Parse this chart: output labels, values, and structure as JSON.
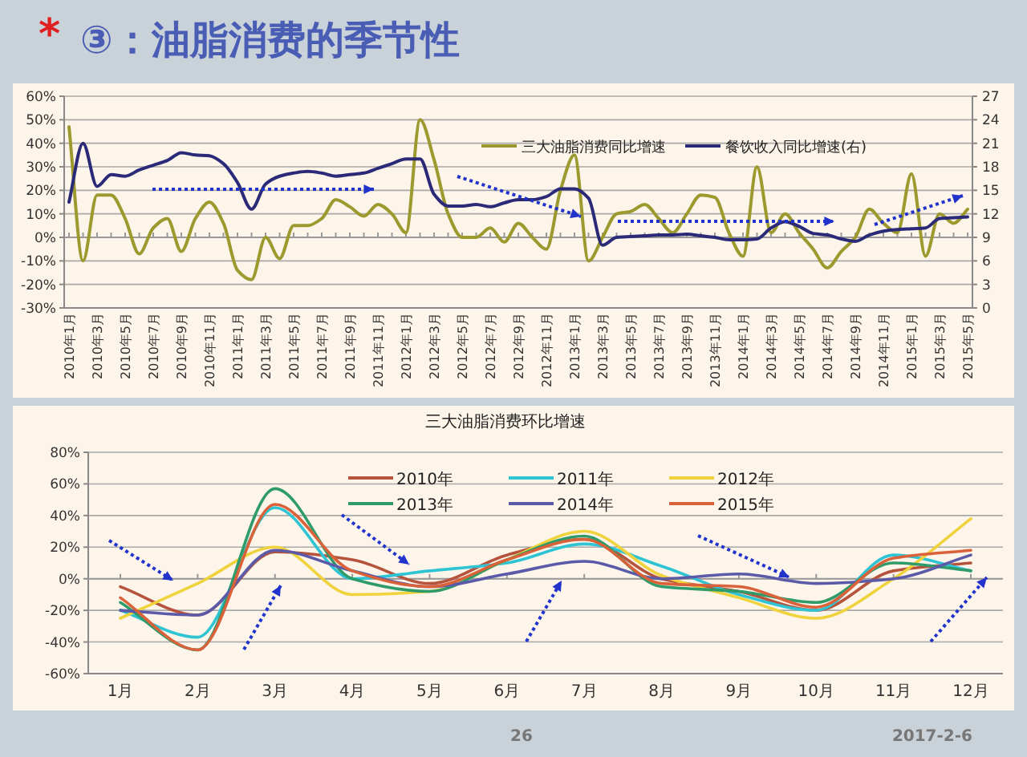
{
  "chart_data": [
    {
      "type": "line",
      "title": "③：油脂消费的季节性",
      "annotations": [
        "*"
      ],
      "categories": [
        "2010年1月",
        null,
        "2010年3月",
        null,
        "2010年5月",
        null,
        "2010年7月",
        null,
        "2010年9月",
        null,
        "2010年11月",
        null,
        "2011年1月",
        null,
        "2011年3月",
        null,
        "2011年5月",
        null,
        "2011年7月",
        null,
        "2011年9月",
        null,
        "2011年11月",
        null,
        "2012年1月",
        null,
        "2012年3月",
        null,
        "2012年5月",
        null,
        "2012年7月",
        null,
        "2012年9月",
        null,
        "2012年11月",
        null,
        "2013年1月",
        null,
        "2013年3月",
        null,
        "2013年5月",
        null,
        "2013年7月",
        null,
        "2013年9月",
        null,
        "2013年11月",
        null,
        "2014年1月",
        null,
        "2014年3月",
        null,
        "2014年5月",
        null,
        "2014年7月",
        null,
        "2014年9月",
        null,
        "2014年11月",
        null,
        "2015年1月",
        null,
        "2015年3月",
        null,
        "2015年5月"
      ],
      "series": [
        {
          "name": "三大油脂消费同比增速",
          "color": "#9c9a2e",
          "values": [
            47,
            -10,
            18,
            18,
            8,
            -7,
            4,
            8,
            -6,
            8,
            15,
            6,
            -14,
            -18,
            0,
            -9,
            5,
            5,
            8,
            16,
            13,
            9,
            14,
            10,
            2,
            50,
            33,
            10,
            0,
            0,
            4,
            -2,
            6,
            0,
            -5,
            20,
            35,
            -10,
            0,
            10,
            11,
            14,
            8,
            2,
            10,
            18,
            17,
            2,
            -8,
            30,
            2,
            10,
            2,
            -5,
            -13,
            -6,
            0,
            12,
            6,
            2,
            27,
            -8,
            10,
            6,
            12
          ]
        },
        {
          "name": "餐饮收入同比增速(右)",
          "color": "#2b2a78",
          "axis": "y2",
          "values": [
            13.5,
            21,
            15.5,
            17,
            16.8,
            17.6,
            18.2,
            18.8,
            19.8,
            19.5,
            19.4,
            18.4,
            16,
            12.6,
            15.8,
            16.8,
            17.2,
            17.4,
            17.2,
            16.8,
            17,
            17.2,
            17.8,
            18.4,
            19,
            19,
            14.5,
            13,
            13,
            13.2,
            12.9,
            13.4,
            13.8,
            13.8,
            14.2,
            15.2,
            15.2,
            14,
            8,
            9,
            9.1,
            9.2,
            9.3,
            9.3,
            9.4,
            9.2,
            9,
            8.7,
            8.7,
            8.8,
            10.2,
            11,
            10.4,
            9.5,
            9.3,
            8.8,
            8.5,
            9.3,
            9.8,
            10,
            10.1,
            10.2,
            11.4,
            11.5,
            11.6
          ]
        }
      ],
      "ylim": [
        -30,
        60
      ],
      "yticks": [
        {
          "value": -30,
          "label": "-30%"
        },
        {
          "value": -20,
          "label": "-20%"
        },
        {
          "value": -10,
          "label": "-10%"
        },
        {
          "value": 0,
          "label": "0%"
        },
        {
          "value": 10,
          "label": "10%"
        },
        {
          "value": 20,
          "label": "20%"
        },
        {
          "value": 30,
          "label": "30%"
        },
        {
          "value": 40,
          "label": "40%"
        },
        {
          "value": 50,
          "label": "50%"
        },
        {
          "value": 60,
          "label": "60%"
        }
      ],
      "y2lim": [
        0,
        27
      ],
      "y2ticks": [
        0,
        3,
        6,
        9,
        12,
        15,
        18,
        21,
        24,
        27
      ],
      "grid": "y",
      "legend": "top right",
      "marker": "none",
      "line_style": "solid"
    },
    {
      "type": "line",
      "title": "三大油脂消费环比增速",
      "annotations": [
        "26",
        "2017-2-6"
      ],
      "categories": [
        "1月",
        "2月",
        "3月",
        "4月",
        "5月",
        "6月",
        "7月",
        "8月",
        "9月",
        "10月",
        "11月",
        "12月"
      ],
      "series": [
        {
          "name": "2010年",
          "color": "#b5533c",
          "values": [
            -5,
            -23,
            17,
            12,
            -3,
            15,
            25,
            0,
            -8,
            -20,
            5,
            10
          ]
        },
        {
          "name": "2011年",
          "color": "#2ec4d4",
          "values": [
            -20,
            -37,
            45,
            0,
            5,
            10,
            22,
            8,
            -10,
            -20,
            15,
            5
          ]
        },
        {
          "name": "2012年",
          "color": "#f0d33c",
          "values": [
            -25,
            -3,
            20,
            -10,
            -8,
            12,
            30,
            2,
            -12,
            -25,
            0,
            38
          ]
        },
        {
          "name": "2013年",
          "color": "#2f9a6a",
          "values": [
            -15,
            -45,
            57,
            0,
            -8,
            12,
            27,
            -5,
            -8,
            -15,
            10,
            5
          ]
        },
        {
          "name": "2014年",
          "color": "#5b5aa8",
          "values": [
            -20,
            -23,
            18,
            5,
            -5,
            3,
            11,
            0,
            3,
            -3,
            0,
            15
          ]
        },
        {
          "name": "2015年",
          "color": "#d9623a",
          "values": [
            -12,
            -45,
            47,
            5,
            -5,
            12,
            25,
            -3,
            -5,
            -18,
            13,
            18
          ]
        }
      ],
      "ylim": [
        -60,
        80
      ],
      "yticks": [
        {
          "value": -60,
          "label": "-60%"
        },
        {
          "value": -40,
          "label": "-40%"
        },
        {
          "value": -20,
          "label": "-20%"
        },
        {
          "value": 0,
          "label": "0%"
        },
        {
          "value": 20,
          "label": "20%"
        },
        {
          "value": 40,
          "label": "40%"
        },
        {
          "value": 60,
          "label": "60%"
        },
        {
          "value": 80,
          "label": "80%"
        }
      ],
      "grid": "y",
      "legend": "top left",
      "marker": "none",
      "line_style": "solid"
    }
  ]
}
